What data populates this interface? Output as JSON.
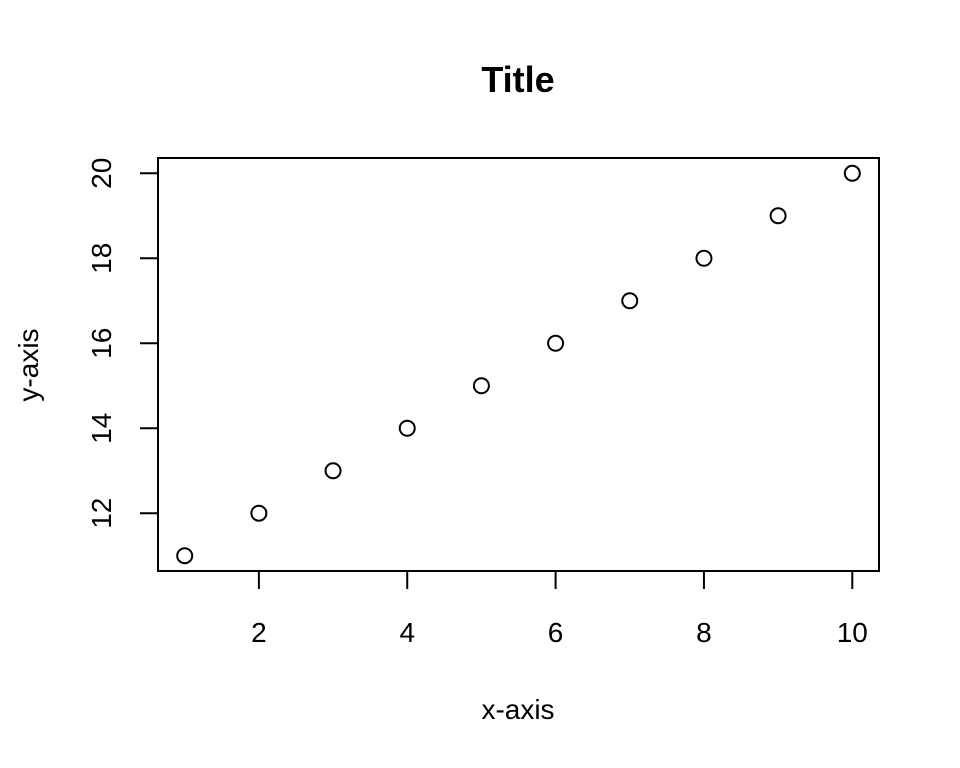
{
  "chart_data": {
    "type": "scatter",
    "title": "Title",
    "xlabel": "x-axis",
    "ylabel": "y-axis",
    "xlim": [
      0.64,
      10.36
    ],
    "ylim": [
      10.64,
      20.36
    ],
    "xticks": [
      2,
      4,
      6,
      8,
      10
    ],
    "yticks": [
      12,
      14,
      16,
      18,
      20
    ],
    "grid": false,
    "marker": "open-circle",
    "series": [
      {
        "x": [
          1,
          2,
          3,
          4,
          5,
          6,
          7,
          8,
          9,
          10
        ],
        "y": [
          11,
          12,
          13,
          14,
          15,
          16,
          17,
          18,
          19,
          20
        ]
      }
    ]
  }
}
